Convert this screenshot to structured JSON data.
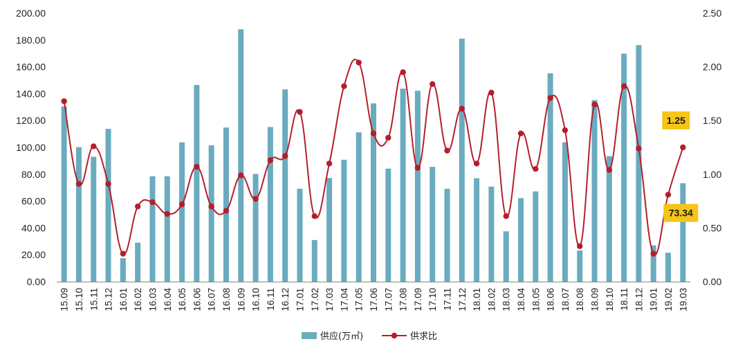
{
  "chart_data": {
    "type": "bar",
    "title": "",
    "xlabel": "",
    "ylabel": "",
    "categories": [
      "15.09",
      "15.10",
      "15.11",
      "15.12",
      "16.01",
      "16.02",
      "16.03",
      "16.04",
      "16.05",
      "16.06",
      "16.07",
      "16.08",
      "16.09",
      "16.10",
      "16.11",
      "16.12",
      "17.01",
      "17.02",
      "17.03",
      "17.04",
      "17.05",
      "17.06",
      "17.07",
      "17.08",
      "17.09",
      "17.10",
      "17.11",
      "17.12",
      "18.01",
      "18.02",
      "18.03",
      "18.04",
      "18.05",
      "18.06",
      "18.07",
      "18.08",
      "18.09",
      "18.10",
      "18.11",
      "18.12",
      "19.01",
      "19.02",
      "19.03"
    ],
    "series": [
      {
        "name": "供应(万㎡)",
        "type": "bar",
        "axis": "left",
        "color": "#6aabbf",
        "values": [
          130.5,
          100.2,
          93.0,
          113.8,
          17.5,
          29.0,
          78.5,
          78.5,
          103.8,
          146.5,
          101.5,
          114.8,
          188.0,
          80.2,
          115.2,
          143.2,
          69.2,
          31.0,
          77.2,
          90.8,
          111.2,
          132.8,
          84.2,
          143.8,
          142.2,
          85.5,
          69.2,
          181.0,
          77.0,
          70.8,
          37.5,
          62.2,
          67.2,
          155.2,
          103.8,
          23.2,
          135.2,
          93.5,
          169.8,
          176.2,
          27.0,
          21.5,
          73.34
        ]
      },
      {
        "name": "供求比",
        "type": "line",
        "axis": "right",
        "color": "#b41e2a",
        "values": [
          1.68,
          0.91,
          1.26,
          0.91,
          0.26,
          0.7,
          0.74,
          0.63,
          0.72,
          1.07,
          0.7,
          0.66,
          0.99,
          0.77,
          1.13,
          1.17,
          1.58,
          0.61,
          1.1,
          1.82,
          2.04,
          1.38,
          1.34,
          1.95,
          1.06,
          1.84,
          1.22,
          1.61,
          1.1,
          1.76,
          0.61,
          1.38,
          1.05,
          1.71,
          1.41,
          0.33,
          1.65,
          1.04,
          1.82,
          1.24,
          0.26,
          0.81,
          1.25
        ]
      }
    ],
    "y_left": {
      "ylim": [
        0,
        200
      ],
      "ticks": [
        "0.00",
        "20.00",
        "40.00",
        "60.00",
        "80.00",
        "100.00",
        "120.00",
        "140.00",
        "160.00",
        "180.00",
        "200.00"
      ]
    },
    "y_right": {
      "ylim": [
        0,
        2.5
      ],
      "ticks": [
        "0.00",
        "0.50",
        "1.00",
        "1.50",
        "2.00",
        "2.50"
      ]
    },
    "grid": false,
    "legend_position": "bottom",
    "annotations": [
      {
        "text": "1.25",
        "series": "供求比",
        "category": "19.03",
        "bg": "#f5c518"
      },
      {
        "text": "73.34",
        "series": "供应(万㎡)",
        "category": "19.03",
        "bg": "#f5c518"
      }
    ]
  }
}
